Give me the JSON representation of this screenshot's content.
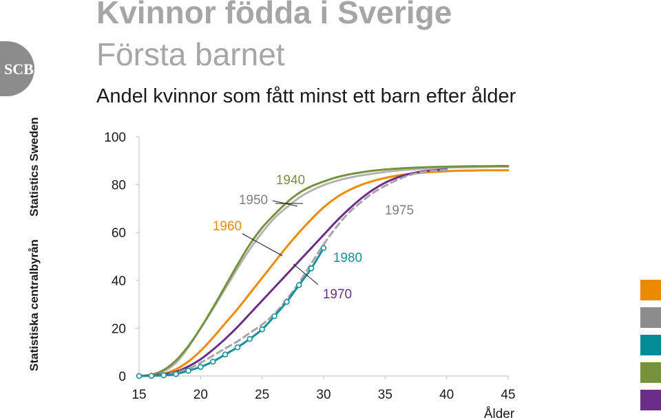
{
  "header": {
    "title_line1": "Kvinnor födda i Sverige",
    "title_line2": "Första barnet",
    "subtitle": "Andel kvinnor som fått minst ett barn efter ålder"
  },
  "brand": {
    "logo_text": "SCB",
    "vertical_text_1": "Statistics Sweden",
    "vertical_text_2": "Statistiska centralbyrån",
    "color": "#8c8c8c"
  },
  "legend_swatches": [
    {
      "color": "#ed8b00"
    },
    {
      "color": "#8c8c8c"
    },
    {
      "color": "#008c96"
    },
    {
      "color": "#76923c"
    },
    {
      "color": "#6b2d87"
    }
  ],
  "chart_data": {
    "type": "line",
    "xlabel": "Ålder",
    "ylabel": "",
    "xlim": [
      15,
      45
    ],
    "ylim": [
      0,
      100
    ],
    "xticks": [
      15,
      20,
      25,
      30,
      35,
      40,
      45
    ],
    "yticks": [
      0,
      20,
      40,
      60,
      80,
      100
    ],
    "grid": false,
    "series": [
      {
        "name": "1950",
        "color": "#b3b3b3",
        "dash": false,
        "markers": false,
        "x": [
          15,
          16,
          17,
          18,
          19,
          20,
          21,
          22,
          23,
          24,
          25,
          26,
          27,
          28,
          29,
          30,
          31,
          32,
          33,
          34,
          35,
          36,
          37,
          38,
          39,
          40,
          41,
          42,
          43,
          44,
          45
        ],
        "y": [
          0,
          0.5,
          2,
          5.5,
          12,
          20,
          28,
          36.5,
          45,
          53,
          60,
          66,
          70.5,
          74.5,
          77.5,
          79.8,
          81.5,
          82.8,
          83.8,
          84.6,
          85.3,
          85.9,
          86.3,
          86.6,
          86.9,
          87.1,
          87.2,
          87.3,
          87.4,
          87.5,
          87.5
        ]
      },
      {
        "name": "1940",
        "color": "#76923c",
        "dash": false,
        "markers": false,
        "x": [
          15,
          16,
          17,
          18,
          19,
          20,
          21,
          22,
          23,
          24,
          25,
          26,
          27,
          28,
          29,
          30,
          31,
          32,
          33,
          34,
          35,
          36,
          37,
          38,
          39,
          40,
          41,
          42,
          43,
          44,
          45
        ],
        "y": [
          0,
          0.5,
          2.5,
          6.5,
          12.5,
          20,
          28.5,
          37.5,
          46.5,
          55,
          62,
          67.5,
          72.5,
          76.5,
          79.3,
          81.3,
          83,
          84.2,
          85.1,
          85.8,
          86.3,
          86.7,
          87,
          87.2,
          87.4,
          87.5,
          87.6,
          87.7,
          87.7,
          87.8,
          87.8
        ]
      },
      {
        "name": "1960",
        "color": "#ed8b00",
        "dash": false,
        "markers": false,
        "x": [
          15,
          16,
          17,
          18,
          19,
          20,
          21,
          22,
          23,
          24,
          25,
          26,
          27,
          28,
          29,
          30,
          31,
          32,
          33,
          34,
          35,
          36,
          37,
          38,
          39,
          40,
          41,
          42,
          43,
          44,
          45
        ],
        "y": [
          0,
          0.3,
          1,
          2.8,
          6,
          10.5,
          16,
          22,
          28,
          34.5,
          41,
          47.5,
          54,
          60,
          65.5,
          70.5,
          74.5,
          77.5,
          79.8,
          81.5,
          82.8,
          83.8,
          84.5,
          85,
          85.3,
          85.6,
          85.8,
          85.9,
          86,
          86,
          86
        ]
      },
      {
        "name": "1970",
        "color": "#6b2d87",
        "dash": false,
        "markers": false,
        "x": [
          15,
          16,
          17,
          18,
          19,
          20,
          21,
          22,
          23,
          24,
          25,
          26,
          27,
          28,
          29,
          30,
          31,
          32,
          33,
          34,
          35,
          36,
          37,
          38,
          39,
          40
        ],
        "y": [
          0,
          0.2,
          0.7,
          1.8,
          4,
          7,
          11,
          15.5,
          20.5,
          26,
          31.5,
          37,
          42.5,
          48,
          53.5,
          59,
          64.5,
          69.5,
          74,
          77.8,
          80.8,
          83,
          84.5,
          85.5,
          86,
          86.5
        ]
      },
      {
        "name": "1975",
        "color": "#a6a6a6",
        "dash": true,
        "markers": false,
        "x": [
          15,
          16,
          17,
          18,
          19,
          20,
          21,
          22,
          23,
          24,
          25,
          26,
          27,
          28,
          29,
          30,
          31,
          32,
          33,
          34,
          35,
          36,
          37,
          38,
          39,
          40
        ],
        "y": [
          0,
          0.1,
          0.5,
          1.5,
          3,
          5.5,
          8.5,
          11.5,
          14.5,
          18,
          21.5,
          26,
          32,
          39,
          47,
          55,
          62,
          68,
          72.5,
          76.5,
          79.5,
          82,
          84,
          85.2,
          85.8,
          86.2
        ]
      },
      {
        "name": "1980",
        "color": "#17909a",
        "dash": false,
        "markers": true,
        "x": [
          15,
          16,
          17,
          18,
          19,
          20,
          21,
          22,
          23,
          24,
          25,
          26,
          27,
          28,
          29,
          30
        ],
        "y": [
          0,
          0.1,
          0.3,
          0.8,
          2.2,
          3.8,
          6,
          9,
          12,
          15.5,
          19.5,
          25,
          31,
          38,
          45,
          53.5
        ]
      }
    ],
    "annotations": [
      {
        "text": "1940",
        "series": "1940",
        "x": 37.8,
        "y": 82,
        "anchor": "middle"
      },
      {
        "text": "1950",
        "series": "1950",
        "x": 34.6,
        "y": 72,
        "anchor": "middle"
      },
      {
        "text": "1960",
        "series": "1960",
        "x": 32.2,
        "y": 56,
        "anchor": "middle"
      },
      {
        "text": "1975",
        "series": "1975",
        "x": 36.1,
        "y": 69.5,
        "anchor": "start"
      },
      {
        "text": "1980",
        "series": "1980",
        "x": 33.6,
        "y": 46,
        "anchor": "start"
      },
      {
        "text": "1970",
        "series": "1970",
        "x": 34.2,
        "y": 32,
        "anchor": "start"
      }
    ]
  }
}
